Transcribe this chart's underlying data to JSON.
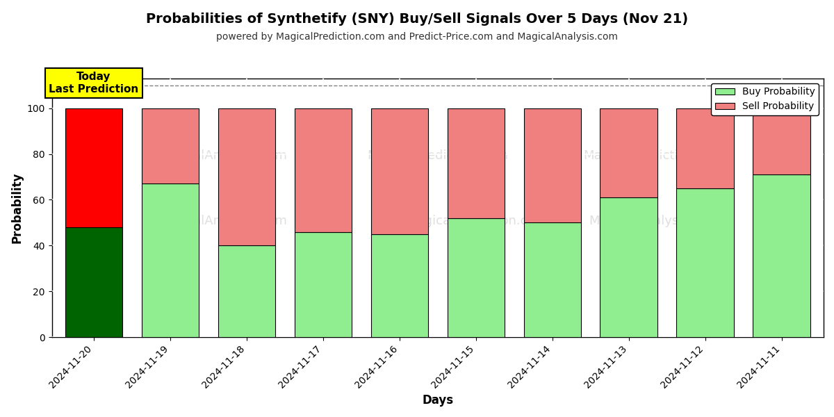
{
  "title": "Probabilities of Synthetify (SNY) Buy/Sell Signals Over 5 Days (Nov 21)",
  "subtitle": "powered by MagicalPrediction.com and Predict-Price.com and MagicalAnalysis.com",
  "xlabel": "Days",
  "ylabel": "Probability",
  "dates": [
    "2024-11-20",
    "2024-11-19",
    "2024-11-18",
    "2024-11-17",
    "2024-11-16",
    "2024-11-15",
    "2024-11-14",
    "2024-11-13",
    "2024-11-12",
    "2024-11-11"
  ],
  "buy_values": [
    48,
    67,
    40,
    46,
    45,
    52,
    50,
    61,
    65,
    71
  ],
  "sell_values": [
    52,
    33,
    60,
    54,
    55,
    48,
    50,
    39,
    35,
    29
  ],
  "today_buy_color": "#006400",
  "today_sell_color": "#FF0000",
  "buy_color": "#90EE90",
  "sell_color": "#F08080",
  "bar_edgecolor": "#000000",
  "today_label_bg": "#FFFF00",
  "today_label_text": "Today\nLast Prediction",
  "legend_buy": "Buy Probability",
  "legend_sell": "Sell Probability",
  "ylim": [
    0,
    110
  ],
  "yticks": [
    0,
    20,
    40,
    60,
    80,
    100
  ],
  "dashed_line_y": 110,
  "background_color": "#ffffff",
  "grid_color": "#cccccc"
}
